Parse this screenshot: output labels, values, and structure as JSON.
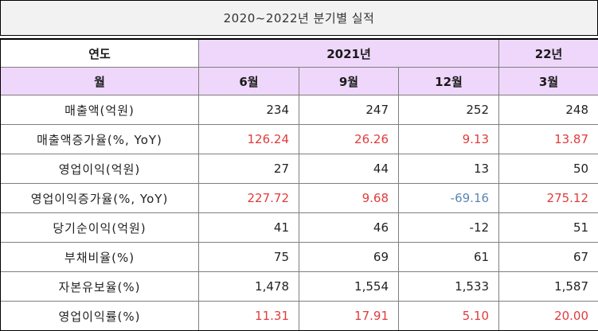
{
  "title": "2020~2022년 분기별 실적",
  "header": {
    "row1": {
      "label": "연도",
      "year_2021": "2021년",
      "year_22": "22년"
    },
    "row2": {
      "label": "월",
      "months": [
        "6월",
        "9월",
        "12월",
        "3월"
      ]
    }
  },
  "colors": {
    "header_bg": "#efd7fb",
    "title_bg": "#f2f2f2",
    "positive_change": "#e03c3c",
    "negative_change": "#5b87b5",
    "default_text": "#222222"
  },
  "rows": [
    {
      "label": "매출액(억원)",
      "values": [
        "234",
        "247",
        "252",
        "248"
      ],
      "colors": [
        "black",
        "black",
        "black",
        "black"
      ]
    },
    {
      "label": "매출액증가율(%, YoY)",
      "values": [
        "126.24",
        "26.26",
        "9.13",
        "13.87"
      ],
      "colors": [
        "red",
        "red",
        "red",
        "red"
      ]
    },
    {
      "label": "영업이익(억원)",
      "values": [
        "27",
        "44",
        "13",
        "50"
      ],
      "colors": [
        "black",
        "black",
        "black",
        "black"
      ]
    },
    {
      "label": "영업이익증가율(%, YoY)",
      "values": [
        "227.72",
        "9.68",
        "-69.16",
        "275.12"
      ],
      "colors": [
        "red",
        "red",
        "blue",
        "red"
      ]
    },
    {
      "label": "당기순이익(억원)",
      "values": [
        "41",
        "46",
        "-12",
        "51"
      ],
      "colors": [
        "black",
        "black",
        "black",
        "black"
      ]
    },
    {
      "label": "부채비율(%)",
      "values": [
        "75",
        "69",
        "61",
        "67"
      ],
      "colors": [
        "black",
        "black",
        "black",
        "black"
      ]
    },
    {
      "label": "자본유보율(%)",
      "values": [
        "1,478",
        "1,554",
        "1,533",
        "1,587"
      ],
      "colors": [
        "black",
        "black",
        "black",
        "black"
      ]
    },
    {
      "label": "영업이익률(%)",
      "values": [
        "11.31",
        "17.91",
        "5.10",
        "20.00"
      ],
      "colors": [
        "red",
        "red",
        "red",
        "red"
      ]
    }
  ]
}
